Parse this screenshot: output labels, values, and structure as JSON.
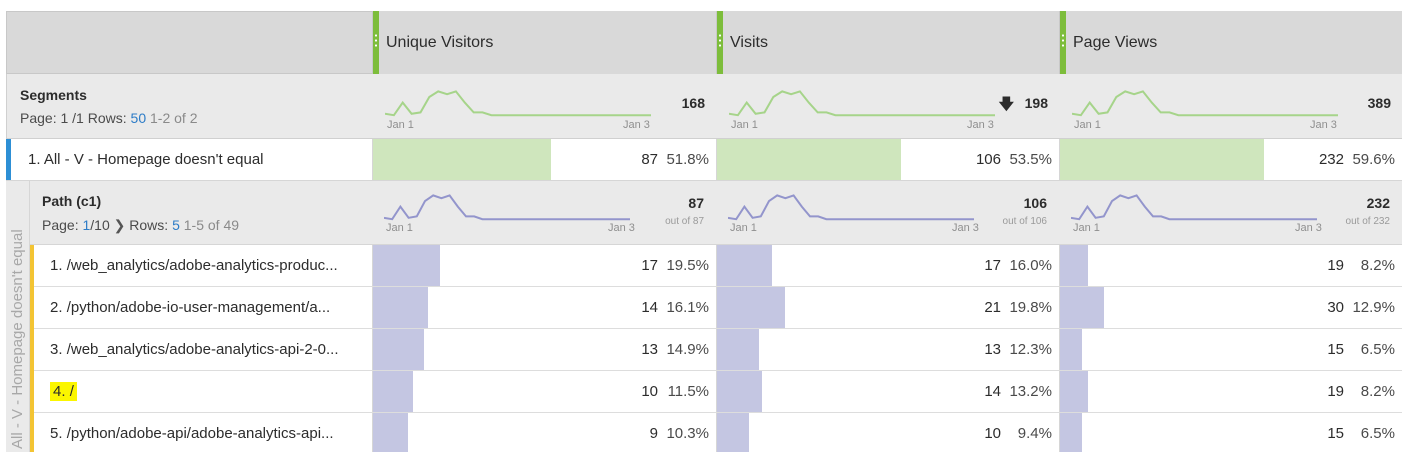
{
  "columns": [
    {
      "label": "Unique Visitors"
    },
    {
      "label": "Visits"
    },
    {
      "label": "Page Views"
    }
  ],
  "segments": {
    "title": "Segments",
    "page_label": "Page:",
    "page_value": "1 /1",
    "rows_label": "Rows:",
    "rows_value": "50",
    "range": "1-2 of 2",
    "totals": [
      "168",
      "198",
      "389"
    ],
    "spark_start": "Jan 1",
    "spark_end": "Jan 3",
    "sort_icon": "arrow-down-icon"
  },
  "segment_item": {
    "label": "1. All - V - Homepage doesn't equal",
    "values": [
      "87",
      "106",
      "232"
    ],
    "percents": [
      "51.8%",
      "53.5%",
      "59.6%"
    ],
    "fractions": [
      0.518,
      0.535,
      0.596
    ]
  },
  "path": {
    "title": "Path (c1)",
    "page_label": "Page:",
    "page_current": "1",
    "page_total": "/10",
    "rows_label": "Rows:",
    "rows_value": "5",
    "range": "1-5 of 49",
    "totals": [
      "87",
      "106",
      "232"
    ],
    "outof": [
      "out of 87",
      "out of 106",
      "out of 232"
    ],
    "spark_start": "Jan 1",
    "spark_end": "Jan 3"
  },
  "side_label": "All - V - Homepage doesn't equal",
  "rows": [
    {
      "num": "1.",
      "label": "/web_analytics/adobe-analytics-produc...",
      "values": [
        "17",
        "17",
        "19"
      ],
      "percents": [
        "19.5%",
        "16.0%",
        "8.2%"
      ],
      "fractions": [
        0.195,
        0.16,
        0.082
      ]
    },
    {
      "num": "2.",
      "label": "/python/adobe-io-user-management/a...",
      "values": [
        "14",
        "21",
        "30"
      ],
      "percents": [
        "16.1%",
        "19.8%",
        "12.9%"
      ],
      "fractions": [
        0.161,
        0.198,
        0.129
      ]
    },
    {
      "num": "3.",
      "label": "/web_analytics/adobe-analytics-api-2-0...",
      "values": [
        "13",
        "13",
        "15"
      ],
      "percents": [
        "14.9%",
        "12.3%",
        "6.5%"
      ],
      "fractions": [
        0.149,
        0.123,
        0.065
      ]
    },
    {
      "num": "4.",
      "label": "/",
      "values": [
        "10",
        "14",
        "19"
      ],
      "percents": [
        "11.5%",
        "13.2%",
        "8.2%"
      ],
      "fractions": [
        0.115,
        0.132,
        0.082
      ],
      "highlight": true
    },
    {
      "num": "5.",
      "label": "/python/adobe-api/adobe-analytics-api...",
      "values": [
        "9",
        "10",
        "15"
      ],
      "percents": [
        "10.3%",
        "9.4%",
        "6.5%"
      ],
      "fractions": [
        0.103,
        0.094,
        0.065
      ]
    }
  ],
  "colors": {
    "header_grip": "#7dbd3b",
    "segment_bar": "#cfe6bd",
    "path_bar": "#c4c6e2",
    "segment_spark": "#a6d48a",
    "path_spark": "#9395cc",
    "highlight": "#fbf600",
    "segment_accent": "#2d8fd5",
    "path_accent": "#f3c433"
  }
}
